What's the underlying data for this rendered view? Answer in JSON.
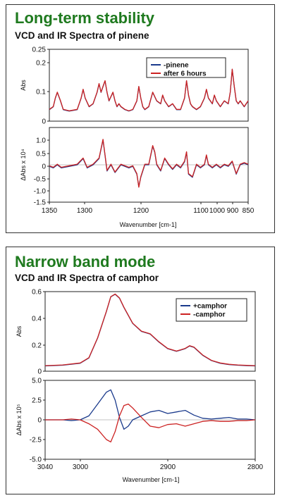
{
  "chart_data": [
    {
      "type": "line",
      "title": "Long-term stability",
      "subtitle": "VCD and IR Spectra of pinene",
      "xlabel": "Wavenumber [cm-1]",
      "x_ticks": [
        "1350",
        "1300",
        "1200",
        "1100",
        "1000",
        "900",
        "850"
      ],
      "xlim": [
        1350,
        850
      ],
      "legend_position": "top-right",
      "colors": {
        "series1": "#1a3a8c",
        "series2": "#cc2222"
      },
      "top": {
        "ylabel": "Abs",
        "ylim": [
          0,
          0.25
        ],
        "y_ticks": [
          "0.25",
          "0.2",
          "0.1",
          "0"
        ],
        "series": [
          {
            "name": "-pinene",
            "x": [
              1350,
              1340,
              1335,
              1330,
              1322,
              1315,
              1300,
              1280,
              1270,
              1265,
              1260,
              1250,
              1240,
              1230,
              1225,
              1220,
              1215,
              1210,
              1205,
              1200,
              1190,
              1185,
              1180,
              1175,
              1170,
              1160,
              1150,
              1140,
              1130,
              1125,
              1120,
              1115,
              1110,
              1100,
              1090,
              1080,
              1070,
              1065,
              1060,
              1050,
              1040,
              1030,
              1020,
              1010,
              1005,
              1000,
              995,
              990,
              980,
              970,
              960,
              955,
              950,
              940,
              935,
              930,
              920,
              910,
              900,
              895,
              890,
              885,
              880,
              875,
              870,
              860,
              850
            ],
            "y": [
              0.04,
              0.05,
              0.08,
              0.1,
              0.07,
              0.04,
              0.035,
              0.04,
              0.08,
              0.11,
              0.08,
              0.05,
              0.06,
              0.1,
              0.13,
              0.1,
              0.12,
              0.14,
              0.1,
              0.07,
              0.1,
              0.07,
              0.05,
              0.06,
              0.05,
              0.04,
              0.035,
              0.04,
              0.07,
              0.12,
              0.08,
              0.05,
              0.04,
              0.05,
              0.1,
              0.07,
              0.06,
              0.09,
              0.07,
              0.05,
              0.06,
              0.04,
              0.04,
              0.08,
              0.14,
              0.09,
              0.06,
              0.05,
              0.04,
              0.05,
              0.08,
              0.11,
              0.08,
              0.06,
              0.09,
              0.07,
              0.05,
              0.07,
              0.06,
              0.1,
              0.18,
              0.12,
              0.07,
              0.06,
              0.07,
              0.05,
              0.07
            ]
          },
          {
            "name": "after 6 hours",
            "x": [
              1350,
              1340,
              1335,
              1330,
              1322,
              1315,
              1300,
              1280,
              1270,
              1265,
              1260,
              1250,
              1240,
              1230,
              1225,
              1220,
              1215,
              1210,
              1205,
              1200,
              1190,
              1185,
              1180,
              1175,
              1170,
              1160,
              1150,
              1140,
              1130,
              1125,
              1120,
              1115,
              1110,
              1100,
              1090,
              1080,
              1070,
              1065,
              1060,
              1050,
              1040,
              1030,
              1020,
              1010,
              1005,
              1000,
              995,
              990,
              980,
              970,
              960,
              955,
              950,
              940,
              935,
              930,
              920,
              910,
              900,
              895,
              890,
              885,
              880,
              875,
              870,
              860,
              850
            ],
            "y": [
              0.041,
              0.051,
              0.081,
              0.101,
              0.071,
              0.041,
              0.036,
              0.041,
              0.081,
              0.111,
              0.081,
              0.051,
              0.061,
              0.101,
              0.131,
              0.101,
              0.121,
              0.141,
              0.101,
              0.071,
              0.101,
              0.071,
              0.051,
              0.061,
              0.051,
              0.041,
              0.036,
              0.041,
              0.071,
              0.121,
              0.081,
              0.051,
              0.041,
              0.051,
              0.101,
              0.071,
              0.061,
              0.091,
              0.071,
              0.051,
              0.061,
              0.041,
              0.041,
              0.081,
              0.141,
              0.091,
              0.061,
              0.051,
              0.041,
              0.051,
              0.081,
              0.111,
              0.081,
              0.061,
              0.091,
              0.071,
              0.051,
              0.071,
              0.061,
              0.101,
              0.181,
              0.121,
              0.071,
              0.061,
              0.071,
              0.051,
              0.071
            ]
          }
        ]
      },
      "bottom": {
        "ylabel": "ΔAbs x 10⁴",
        "ylim": [
          -1.2,
          1.2
        ],
        "y_ticks": [
          "1.0",
          "0.5",
          "0",
          "-0.5",
          "-1.0",
          "-1.5"
        ],
        "series": [
          {
            "name": "-pinene",
            "x": [
              1350,
              1340,
              1330,
              1320,
              1300,
              1280,
              1265,
              1255,
              1240,
              1225,
              1215,
              1210,
              1205,
              1195,
              1185,
              1170,
              1150,
              1140,
              1130,
              1125,
              1120,
              1110,
              1100,
              1090,
              1085,
              1080,
              1070,
              1060,
              1050,
              1040,
              1030,
              1020,
              1010,
              1005,
              1000,
              990,
              980,
              970,
              960,
              955,
              950,
              940,
              930,
              920,
              910,
              900,
              890,
              880,
              870,
              860,
              850
            ],
            "y": [
              -0.05,
              -0.1,
              0.0,
              -0.1,
              -0.05,
              0.0,
              0.2,
              -0.1,
              0.0,
              0.2,
              0.8,
              0.3,
              -0.2,
              0.0,
              -0.25,
              0.0,
              -0.1,
              -0.05,
              -0.3,
              -0.7,
              -0.4,
              0.0,
              0.0,
              0.6,
              0.4,
              0.0,
              -0.2,
              0.2,
              0.0,
              -0.15,
              0.0,
              -0.1,
              0.1,
              0.4,
              -0.3,
              -0.4,
              0.0,
              -0.1,
              0.0,
              0.3,
              0.0,
              -0.1,
              0.0,
              -0.1,
              0.0,
              -0.05,
              0.1,
              -0.3,
              0.0,
              0.05,
              0.0
            ]
          },
          {
            "name": "after 6 hours",
            "x": [
              1350,
              1340,
              1330,
              1320,
              1300,
              1280,
              1265,
              1255,
              1240,
              1225,
              1215,
              1210,
              1205,
              1195,
              1185,
              1170,
              1150,
              1140,
              1130,
              1125,
              1120,
              1110,
              1100,
              1090,
              1085,
              1080,
              1070,
              1060,
              1050,
              1040,
              1030,
              1020,
              1010,
              1005,
              1000,
              990,
              980,
              970,
              960,
              955,
              950,
              940,
              930,
              920,
              910,
              900,
              890,
              880,
              870,
              860,
              850
            ],
            "y": [
              -0.03,
              -0.08,
              0.02,
              -0.08,
              -0.03,
              0.02,
              0.22,
              -0.08,
              0.02,
              0.22,
              0.82,
              0.32,
              -0.18,
              0.02,
              -0.23,
              0.02,
              -0.08,
              -0.03,
              -0.28,
              -0.72,
              -0.38,
              0.02,
              0.02,
              0.62,
              0.42,
              0.02,
              -0.18,
              0.22,
              0.02,
              -0.13,
              0.02,
              -0.08,
              0.12,
              0.42,
              -0.28,
              -0.38,
              0.02,
              -0.08,
              0.02,
              0.32,
              0.02,
              -0.08,
              0.02,
              -0.08,
              0.02,
              -0.03,
              0.12,
              -0.28,
              0.02,
              0.07,
              0.02
            ]
          }
        ]
      }
    },
    {
      "type": "line",
      "title": "Narrow band mode",
      "subtitle": "VCD and IR Spectra of camphor",
      "xlabel": "Wavenumber [cm-1]",
      "x_ticks": [
        "3040",
        "3000",
        "2900",
        "2800"
      ],
      "xlim": [
        3040,
        2800
      ],
      "legend_position": "top-right",
      "colors": {
        "series1": "#1a3a8c",
        "series2": "#cc2222"
      },
      "top": {
        "ylabel": "Abs",
        "ylim": [
          0,
          0.6
        ],
        "y_ticks": [
          "0.6",
          "0.4",
          "0.2",
          "0"
        ],
        "series": [
          {
            "name": "+camphor",
            "x": [
              3040,
              3020,
              3000,
              2990,
              2980,
              2970,
              2965,
              2960,
              2955,
              2950,
              2940,
              2930,
              2920,
              2910,
              2900,
              2890,
              2880,
              2875,
              2870,
              2860,
              2850,
              2840,
              2830,
              2820,
              2810,
              2800
            ],
            "y": [
              0.04,
              0.045,
              0.06,
              0.1,
              0.25,
              0.45,
              0.56,
              0.58,
              0.55,
              0.48,
              0.36,
              0.3,
              0.28,
              0.22,
              0.17,
              0.15,
              0.17,
              0.19,
              0.18,
              0.12,
              0.08,
              0.06,
              0.05,
              0.045,
              0.042,
              0.04
            ]
          },
          {
            "name": "-camphor",
            "x": [
              3040,
              3020,
              3000,
              2990,
              2980,
              2970,
              2965,
              2960,
              2955,
              2950,
              2940,
              2930,
              2920,
              2910,
              2900,
              2890,
              2880,
              2875,
              2870,
              2860,
              2850,
              2840,
              2830,
              2820,
              2810,
              2800
            ],
            "y": [
              0.042,
              0.047,
              0.062,
              0.102,
              0.252,
              0.452,
              0.562,
              0.582,
              0.552,
              0.482,
              0.362,
              0.302,
              0.282,
              0.222,
              0.172,
              0.152,
              0.172,
              0.192,
              0.182,
              0.122,
              0.082,
              0.062,
              0.052,
              0.047,
              0.044,
              0.042
            ]
          }
        ]
      },
      "bottom": {
        "ylabel": "ΔAbs x 10⁵",
        "ylim": [
          -5,
          5
        ],
        "y_ticks": [
          "5.0",
          "2.5",
          "0",
          "-2.5",
          "-5.0"
        ],
        "series": [
          {
            "name": "+camphor",
            "x": [
              3040,
              3020,
              3010,
              3000,
              2990,
              2980,
              2970,
              2965,
              2960,
              2955,
              2950,
              2945,
              2940,
              2930,
              2920,
              2910,
              2900,
              2890,
              2880,
              2870,
              2860,
              2850,
              2840,
              2830,
              2820,
              2810,
              2800
            ],
            "y": [
              0.0,
              0.0,
              -0.1,
              0.0,
              0.5,
              2.0,
              3.5,
              3.8,
              2.5,
              0.3,
              -1.2,
              -0.8,
              0.0,
              0.5,
              1.0,
              1.2,
              0.8,
              1.0,
              1.2,
              0.6,
              0.2,
              0.1,
              0.2,
              0.3,
              0.1,
              0.1,
              0.0
            ]
          },
          {
            "name": "-camphor",
            "x": [
              3040,
              3020,
              3010,
              3000,
              2990,
              2980,
              2970,
              2965,
              2960,
              2955,
              2950,
              2945,
              2940,
              2930,
              2920,
              2910,
              2900,
              2890,
              2880,
              2870,
              2860,
              2850,
              2840,
              2830,
              2820,
              2810,
              2800
            ],
            "y": [
              0.0,
              0.0,
              0.1,
              0.0,
              -0.5,
              -1.2,
              -2.5,
              -2.8,
              -1.5,
              0.5,
              1.8,
              2.0,
              1.5,
              0.3,
              -0.8,
              -1.0,
              -0.6,
              -0.5,
              -0.8,
              -0.5,
              -0.2,
              -0.1,
              -0.2,
              -0.2,
              -0.1,
              -0.1,
              0.0
            ]
          }
        ]
      }
    }
  ]
}
